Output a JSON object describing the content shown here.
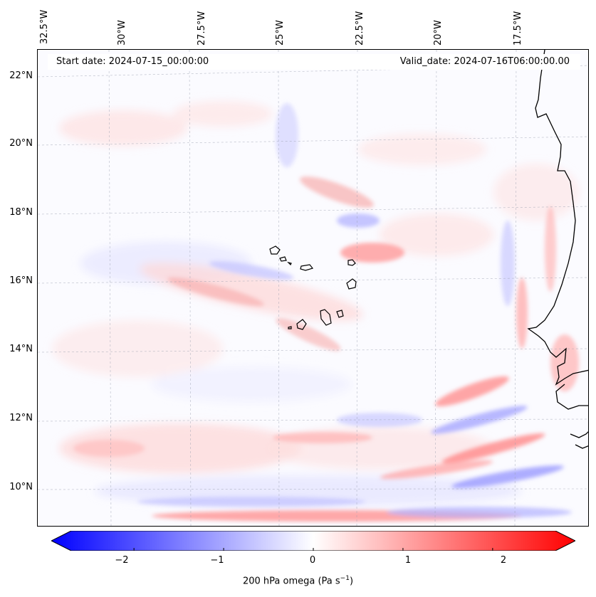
{
  "map": {
    "start_date": "Start date: 2024-07-15_00:00:00",
    "valid_date": "Valid_date: 2024-07-16T06:00:00.00",
    "variable_label": "200 hPa omega (Pa s",
    "unit_superscript": "−1",
    "unit_close": ")",
    "lon_labels": [
      "32.5°W",
      "30°W",
      "27.5°W",
      "25°W",
      "22.5°W",
      "20°W",
      "17.5°W"
    ],
    "lat_labels": [
      "22°N",
      "20°N",
      "18°N",
      "16°N",
      "14°N",
      "12°N",
      "10°N"
    ],
    "colorbar": {
      "min": -2.7,
      "max": 2.7,
      "ticks": [
        "−2",
        "−1",
        "0",
        "1",
        "2"
      ],
      "tick_values": [
        -2,
        -1,
        0,
        1,
        2
      ],
      "colormap": "bwr",
      "low_color": "#0000ff",
      "mid_color": "#ffffff",
      "high_color": "#ff0000"
    },
    "lon_range": [
      -33,
      -15.5
    ],
    "lat_range": [
      8.8,
      22.8
    ],
    "features": [
      "Cape Verde islands",
      "West African coastline (Senegal, Gambia, Guinea-Bissau)"
    ]
  }
}
